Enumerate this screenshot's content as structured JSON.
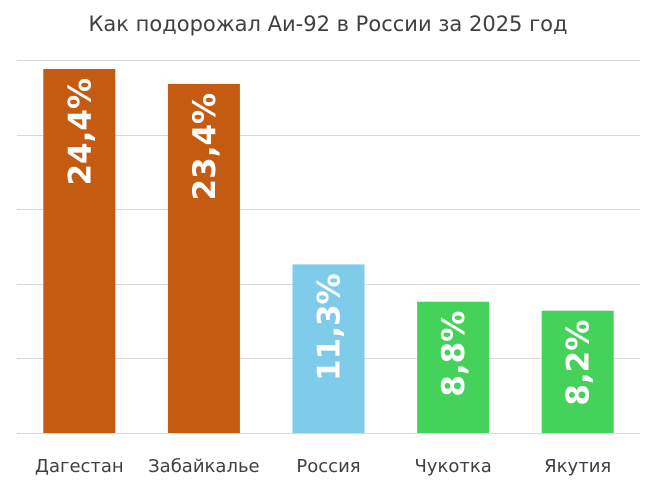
{
  "chart_data": {
    "type": "bar",
    "title": "Как подорожал Аи-92 в России за 2025 год",
    "xlabel": "",
    "ylabel": "",
    "ylim": [
      0,
      25
    ],
    "grid": true,
    "legend": "none",
    "categories": [
      "Дагестан",
      "Забайкалье",
      "Россия",
      "Чукотка",
      "Якутия"
    ],
    "values": [
      24.4,
      23.4,
      11.3,
      8.8,
      8.2
    ],
    "data_labels": [
      "24,4%",
      "23,4%",
      "11,3%",
      "8,8%",
      "8,2%"
    ],
    "colors": [
      "#c55a11",
      "#c55a11",
      "#7ecbea",
      "#44d25b",
      "#44d25b"
    ]
  }
}
